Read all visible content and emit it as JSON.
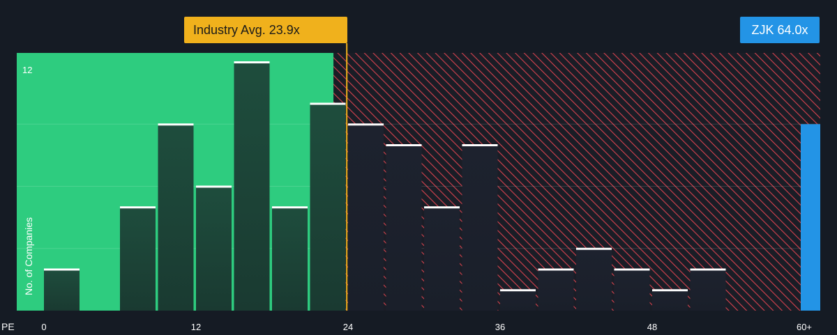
{
  "chart_data": {
    "type": "bar",
    "x_label": "PE",
    "y_label": "No. of Companies",
    "x_ticks": [
      "0",
      "12",
      "24",
      "36",
      "48",
      "60+"
    ],
    "x_tick_values": [
      0,
      12,
      24,
      36,
      48,
      60
    ],
    "y_ticks": [
      "12"
    ],
    "y_tick_values": [
      12
    ],
    "xlim": [
      0,
      60
    ],
    "ylim": [
      0,
      12
    ],
    "bin_width": 3,
    "bins": [
      {
        "x": 0,
        "value": 2
      },
      {
        "x": 3,
        "value": 0
      },
      {
        "x": 6,
        "value": 5
      },
      {
        "x": 9,
        "value": 9
      },
      {
        "x": 12,
        "value": 6
      },
      {
        "x": 15,
        "value": 12
      },
      {
        "x": 18,
        "value": 5
      },
      {
        "x": 21,
        "value": 10
      },
      {
        "x": 24,
        "value": 9
      },
      {
        "x": 27,
        "value": 8
      },
      {
        "x": 30,
        "value": 5
      },
      {
        "x": 33,
        "value": 8
      },
      {
        "x": 36,
        "value": 1
      },
      {
        "x": 39,
        "value": 2
      },
      {
        "x": 42,
        "value": 3
      },
      {
        "x": 45,
        "value": 2
      },
      {
        "x": 48,
        "value": 1
      },
      {
        "x": 51,
        "value": 2
      },
      {
        "x": 54,
        "value": 0
      },
      {
        "x": 57,
        "value": 0
      }
    ],
    "industry_avg": {
      "label": "Industry Avg. 23.9x",
      "value": 23.9
    },
    "company": {
      "label": "ZJK 64.0x",
      "value": 64.0,
      "bar_value": 9
    },
    "colors": {
      "background": "#151b24",
      "below_avg_region": "#2ecc7f",
      "above_avg_hatch": "#d9434f",
      "bar_fill": "#1d4a3b",
      "bar_cap": "#ffffff",
      "avg_line": "#f0b11c",
      "company_bar": "#2394e6"
    },
    "grid": true
  }
}
